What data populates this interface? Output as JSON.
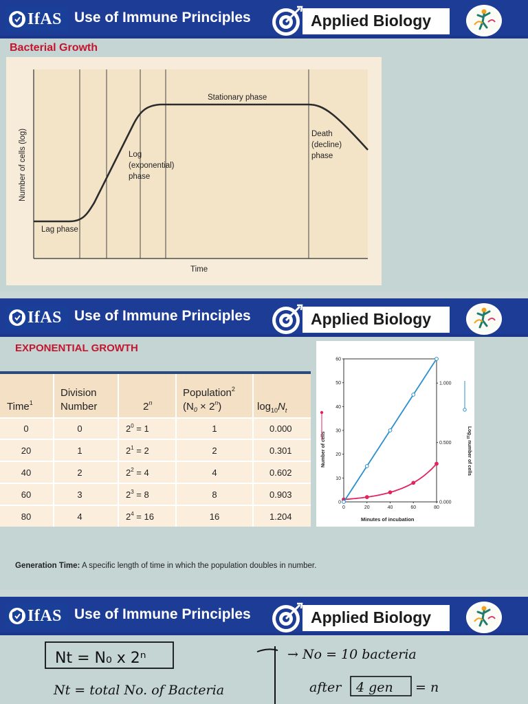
{
  "banner": {
    "logo_text": "IfAS",
    "title": "Use of Immune Principles",
    "subject": "Applied Biology"
  },
  "slide1": {
    "heading": "Bacterial Growth",
    "chart_data": {
      "type": "line",
      "title": "",
      "xlabel": "Time",
      "ylabel": "Number of cells (log)",
      "annotations": [
        "Stationary phase",
        "Death",
        "(decline)",
        "phase",
        "Log",
        "(exponential)",
        "phase",
        "Lag phase"
      ]
    }
  },
  "slide2": {
    "heading": "EXPONENTIAL GROWTH",
    "table": {
      "headers": [
        "Time",
        "Division",
        "Number",
        "2",
        "Population",
        "(N",
        " × 2",
        ")",
        "log",
        "N"
      ],
      "rows": [
        {
          "time": "0",
          "division": "0",
          "power_base": "2",
          "power_exp": "0",
          "power_val": " = 1",
          "population": "1",
          "log": "0.000"
        },
        {
          "time": "20",
          "division": "1",
          "power_base": "2",
          "power_exp": "1",
          "power_val": " = 2",
          "population": "2",
          "log": "0.301"
        },
        {
          "time": "40",
          "division": "2",
          "power_base": "2",
          "power_exp": "2",
          "power_val": " = 4",
          "population": "4",
          "log": "0.602"
        },
        {
          "time": "60",
          "division": "3",
          "power_base": "2",
          "power_exp": "3",
          "power_val": " = 8",
          "population": "8",
          "log": "0.903"
        },
        {
          "time": "80",
          "division": "4",
          "power_base": "2",
          "power_exp": "4",
          "power_val": " = 16",
          "population": "16",
          "log": "1.204"
        }
      ]
    },
    "chart_data": {
      "type": "line",
      "xlabel": "Minutes of incubation",
      "ylabel": "Number of cells",
      "y2label": "Log10 number of cells",
      "x": [
        0,
        20,
        40,
        60,
        80
      ],
      "xlim": [
        0,
        80
      ],
      "ylim": [
        0,
        60
      ],
      "y2lim": [
        0,
        1.204
      ],
      "x_ticks": [
        "0",
        "20",
        "40",
        "60",
        "80"
      ],
      "y_ticks": [
        "0",
        "10",
        "20",
        "30",
        "40",
        "50",
        "60"
      ],
      "y2_ticks": [
        "0.000",
        "0.500",
        "1.000"
      ],
      "series": [
        {
          "color": "#e0245e",
          "marker": "filled",
          "axis": "left",
          "values": [
            1,
            2,
            4,
            8,
            16
          ]
        },
        {
          "color": "#2b8fce",
          "marker": "open",
          "axis": "right",
          "values": [
            0.0,
            0.301,
            0.602,
            0.903,
            1.204
          ]
        }
      ]
    },
    "generation_time": {
      "label": "Generation Time:",
      "text": "A specific length of time in which the population doubles in number."
    }
  },
  "slide3": {
    "boxed_formula": "Nt = N₀ x 2ⁿ",
    "note_left": "Nt = total No. of Bacteria",
    "note_right1": "→ No = 10 bacteria",
    "note_right2a": "after",
    "note_right2b": "4 gen",
    "note_right2c": "= n"
  },
  "colors": {
    "banner_bg": "#1d3c95",
    "accent_red": "#c4142e",
    "table_header": "#f3e0c5",
    "table_row": "#fbeedd",
    "slide_bg": "#c5d5d3"
  }
}
